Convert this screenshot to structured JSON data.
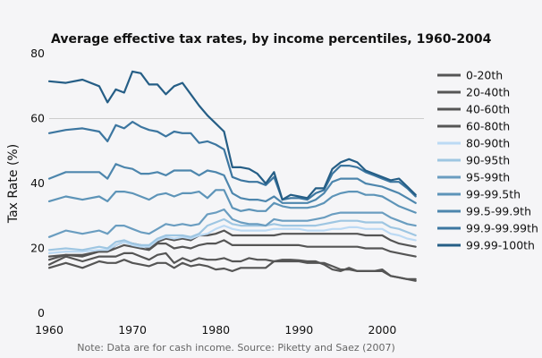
{
  "chart_data": {
    "type": "line",
    "title": "Average effective tax rates, by income percentiles, 1960-2004",
    "xlabel": "",
    "ylabel": "Tax Rate (%)",
    "xlim": [
      1960,
      2005
    ],
    "ylim": [
      0,
      80
    ],
    "xticks": [
      1960,
      1970,
      1980,
      1990,
      2000
    ],
    "yticks": [
      0,
      20,
      40,
      60,
      80
    ],
    "grid": "single horizontal line at 60",
    "legend_position": "right",
    "note": "Note: Data are for cash income. Source: Piketty and Saez (2007)",
    "x": [
      1960,
      1962,
      1964,
      1966,
      1967,
      1968,
      1969,
      1970,
      1971,
      1972,
      1973,
      1974,
      1975,
      1976,
      1977,
      1978,
      1979,
      1980,
      1981,
      1982,
      1983,
      1984,
      1985,
      1986,
      1987,
      1988,
      1989,
      1990,
      1991,
      1992,
      1993,
      1994,
      1995,
      1996,
      1997,
      1998,
      1999,
      2000,
      2001,
      2002,
      2003,
      2004
    ],
    "series": [
      {
        "name": "0-20th",
        "color": "#555555",
        "values": [
          14.0,
          15.5,
          14.0,
          16.0,
          15.5,
          15.5,
          16.5,
          15.5,
          15.0,
          14.5,
          15.5,
          15.5,
          14.0,
          15.5,
          14.5,
          15.0,
          14.5,
          13.5,
          13.8,
          13.0,
          14.0,
          14.0,
          14.0,
          14.0,
          16.0,
          16.5,
          16.5,
          16.3,
          16.0,
          16.0,
          15.0,
          13.5,
          13.0,
          14.0,
          13.0,
          13.0,
          13.0,
          13.0,
          11.5,
          11.0,
          10.5,
          10.0
        ]
      },
      {
        "name": "20-40th",
        "color": "#555555",
        "values": [
          15.0,
          17.5,
          16.0,
          17.5,
          17.5,
          17.5,
          18.5,
          18.5,
          17.5,
          16.5,
          18.0,
          18.5,
          15.5,
          17.0,
          16.0,
          17.0,
          16.5,
          16.5,
          17.0,
          16.0,
          16.0,
          17.0,
          16.5,
          16.5,
          16.0,
          16.0,
          16.0,
          16.0,
          15.5,
          15.5,
          15.5,
          14.5,
          13.5,
          13.5,
          13.0,
          13.0,
          13.0,
          13.5,
          11.5,
          11.0,
          10.5,
          10.5
        ]
      },
      {
        "name": "40-60th",
        "color": "#555555",
        "values": [
          16.5,
          18.0,
          17.5,
          19.0,
          19.0,
          20.0,
          21.0,
          20.5,
          20.0,
          19.5,
          21.5,
          21.5,
          20.0,
          20.5,
          20.0,
          21.0,
          21.5,
          21.5,
          22.5,
          21.0,
          21.0,
          21.0,
          21.0,
          21.0,
          21.0,
          21.0,
          21.0,
          21.0,
          20.5,
          20.5,
          20.5,
          20.5,
          20.5,
          20.5,
          20.5,
          20.0,
          20.0,
          20.0,
          19.0,
          18.5,
          18.0,
          17.5
        ]
      },
      {
        "name": "60-80th",
        "color": "#555555",
        "values": [
          17.5,
          18.0,
          18.0,
          19.0,
          19.0,
          21.0,
          22.0,
          21.5,
          21.0,
          20.0,
          22.0,
          23.0,
          22.5,
          23.0,
          22.5,
          24.0,
          24.0,
          24.5,
          25.5,
          24.0,
          24.0,
          24.0,
          24.0,
          24.0,
          24.0,
          24.5,
          24.5,
          24.5,
          24.5,
          24.5,
          24.5,
          24.5,
          24.5,
          24.5,
          24.5,
          24.0,
          24.0,
          24.0,
          22.5,
          21.5,
          21.0,
          20.5
        ]
      },
      {
        "name": "80-90th",
        "color": "#bcdaf4",
        "values": [
          18.5,
          19.0,
          19.0,
          19.5,
          19.5,
          21.0,
          22.0,
          21.0,
          20.5,
          20.5,
          22.5,
          23.5,
          23.0,
          23.5,
          23.0,
          24.0,
          24.5,
          26.0,
          27.0,
          26.0,
          25.5,
          25.5,
          25.5,
          25.5,
          26.0,
          26.0,
          26.0,
          26.0,
          25.5,
          25.5,
          25.5,
          26.0,
          26.0,
          26.5,
          26.5,
          26.0,
          26.0,
          26.0,
          24.5,
          24.0,
          23.0,
          22.5
        ]
      },
      {
        "name": "90-95th",
        "color": "#9ec6e2",
        "values": [
          19.5,
          20.0,
          19.5,
          20.5,
          20.0,
          22.0,
          22.5,
          21.5,
          21.0,
          21.0,
          23.0,
          24.0,
          24.0,
          24.0,
          23.5,
          24.5,
          27.0,
          28.0,
          29.0,
          27.5,
          27.0,
          27.0,
          27.0,
          27.0,
          27.5,
          27.0,
          27.0,
          27.0,
          27.0,
          27.0,
          27.5,
          28.0,
          28.5,
          28.5,
          28.5,
          28.0,
          28.0,
          28.0,
          26.5,
          26.0,
          25.0,
          24.0
        ]
      },
      {
        "name": "95-99th",
        "color": "#6a9dc0",
        "values": [
          23.5,
          25.5,
          24.5,
          25.5,
          24.5,
          27.0,
          27.0,
          26.0,
          25.0,
          24.5,
          26.0,
          27.5,
          27.0,
          27.5,
          27.0,
          27.5,
          30.5,
          31.0,
          32.0,
          29.0,
          28.0,
          27.5,
          27.5,
          27.0,
          29.0,
          28.5,
          28.5,
          28.5,
          28.5,
          29.0,
          29.5,
          30.5,
          31.0,
          31.0,
          31.0,
          31.0,
          31.0,
          31.0,
          29.5,
          28.5,
          27.5,
          27.0
        ]
      },
      {
        "name": "99-99.5th",
        "color": "#5d94b8",
        "values": [
          34.5,
          36.0,
          35.0,
          36.0,
          34.5,
          37.5,
          37.5,
          37.0,
          36.0,
          35.0,
          36.5,
          37.0,
          36.0,
          37.0,
          37.0,
          37.5,
          35.5,
          38.0,
          38.0,
          32.5,
          31.5,
          32.0,
          31.5,
          31.5,
          34.0,
          33.0,
          32.5,
          32.5,
          32.5,
          33.0,
          34.0,
          36.0,
          37.0,
          37.5,
          37.5,
          36.5,
          36.5,
          36.0,
          34.5,
          33.0,
          32.0,
          31.0
        ]
      },
      {
        "name": "99.5-99.9th",
        "color": "#4d86ad",
        "values": [
          41.5,
          43.5,
          43.5,
          43.5,
          41.5,
          46.0,
          45.0,
          44.5,
          43.0,
          43.0,
          43.5,
          42.5,
          44.0,
          44.0,
          44.0,
          42.5,
          44.0,
          43.5,
          42.5,
          37.0,
          35.5,
          35.0,
          35.0,
          34.5,
          36.0,
          34.0,
          34.0,
          34.0,
          34.0,
          35.0,
          37.0,
          40.5,
          41.5,
          41.5,
          41.5,
          40.0,
          39.5,
          39.0,
          38.0,
          37.0,
          35.5,
          34.0
        ]
      },
      {
        "name": "99.9-99.99th",
        "color": "#3c76a0",
        "values": [
          55.5,
          56.5,
          57.0,
          56.0,
          53.0,
          58.0,
          57.0,
          59.0,
          57.5,
          56.5,
          56.0,
          54.5,
          56.0,
          55.5,
          55.5,
          52.5,
          53.0,
          52.0,
          50.5,
          42.0,
          41.0,
          40.5,
          40.5,
          39.5,
          42.0,
          35.0,
          35.5,
          35.5,
          35.0,
          37.0,
          38.0,
          43.0,
          45.5,
          45.5,
          45.0,
          43.5,
          42.5,
          41.5,
          40.5,
          40.5,
          38.5,
          36.0
        ]
      },
      {
        "name": "99.99-100th",
        "color": "#255e86",
        "values": [
          71.5,
          71.0,
          72.0,
          70.0,
          65.0,
          69.0,
          68.0,
          74.5,
          74.0,
          70.5,
          70.5,
          67.5,
          70.0,
          71.0,
          67.5,
          64.0,
          61.0,
          58.5,
          56.0,
          45.0,
          45.0,
          44.5,
          43.0,
          40.0,
          43.5,
          35.0,
          36.5,
          36.0,
          35.5,
          38.5,
          38.5,
          44.5,
          46.5,
          47.5,
          46.5,
          44.0,
          43.0,
          42.0,
          41.0,
          41.5,
          39.0,
          36.5
        ]
      }
    ]
  }
}
